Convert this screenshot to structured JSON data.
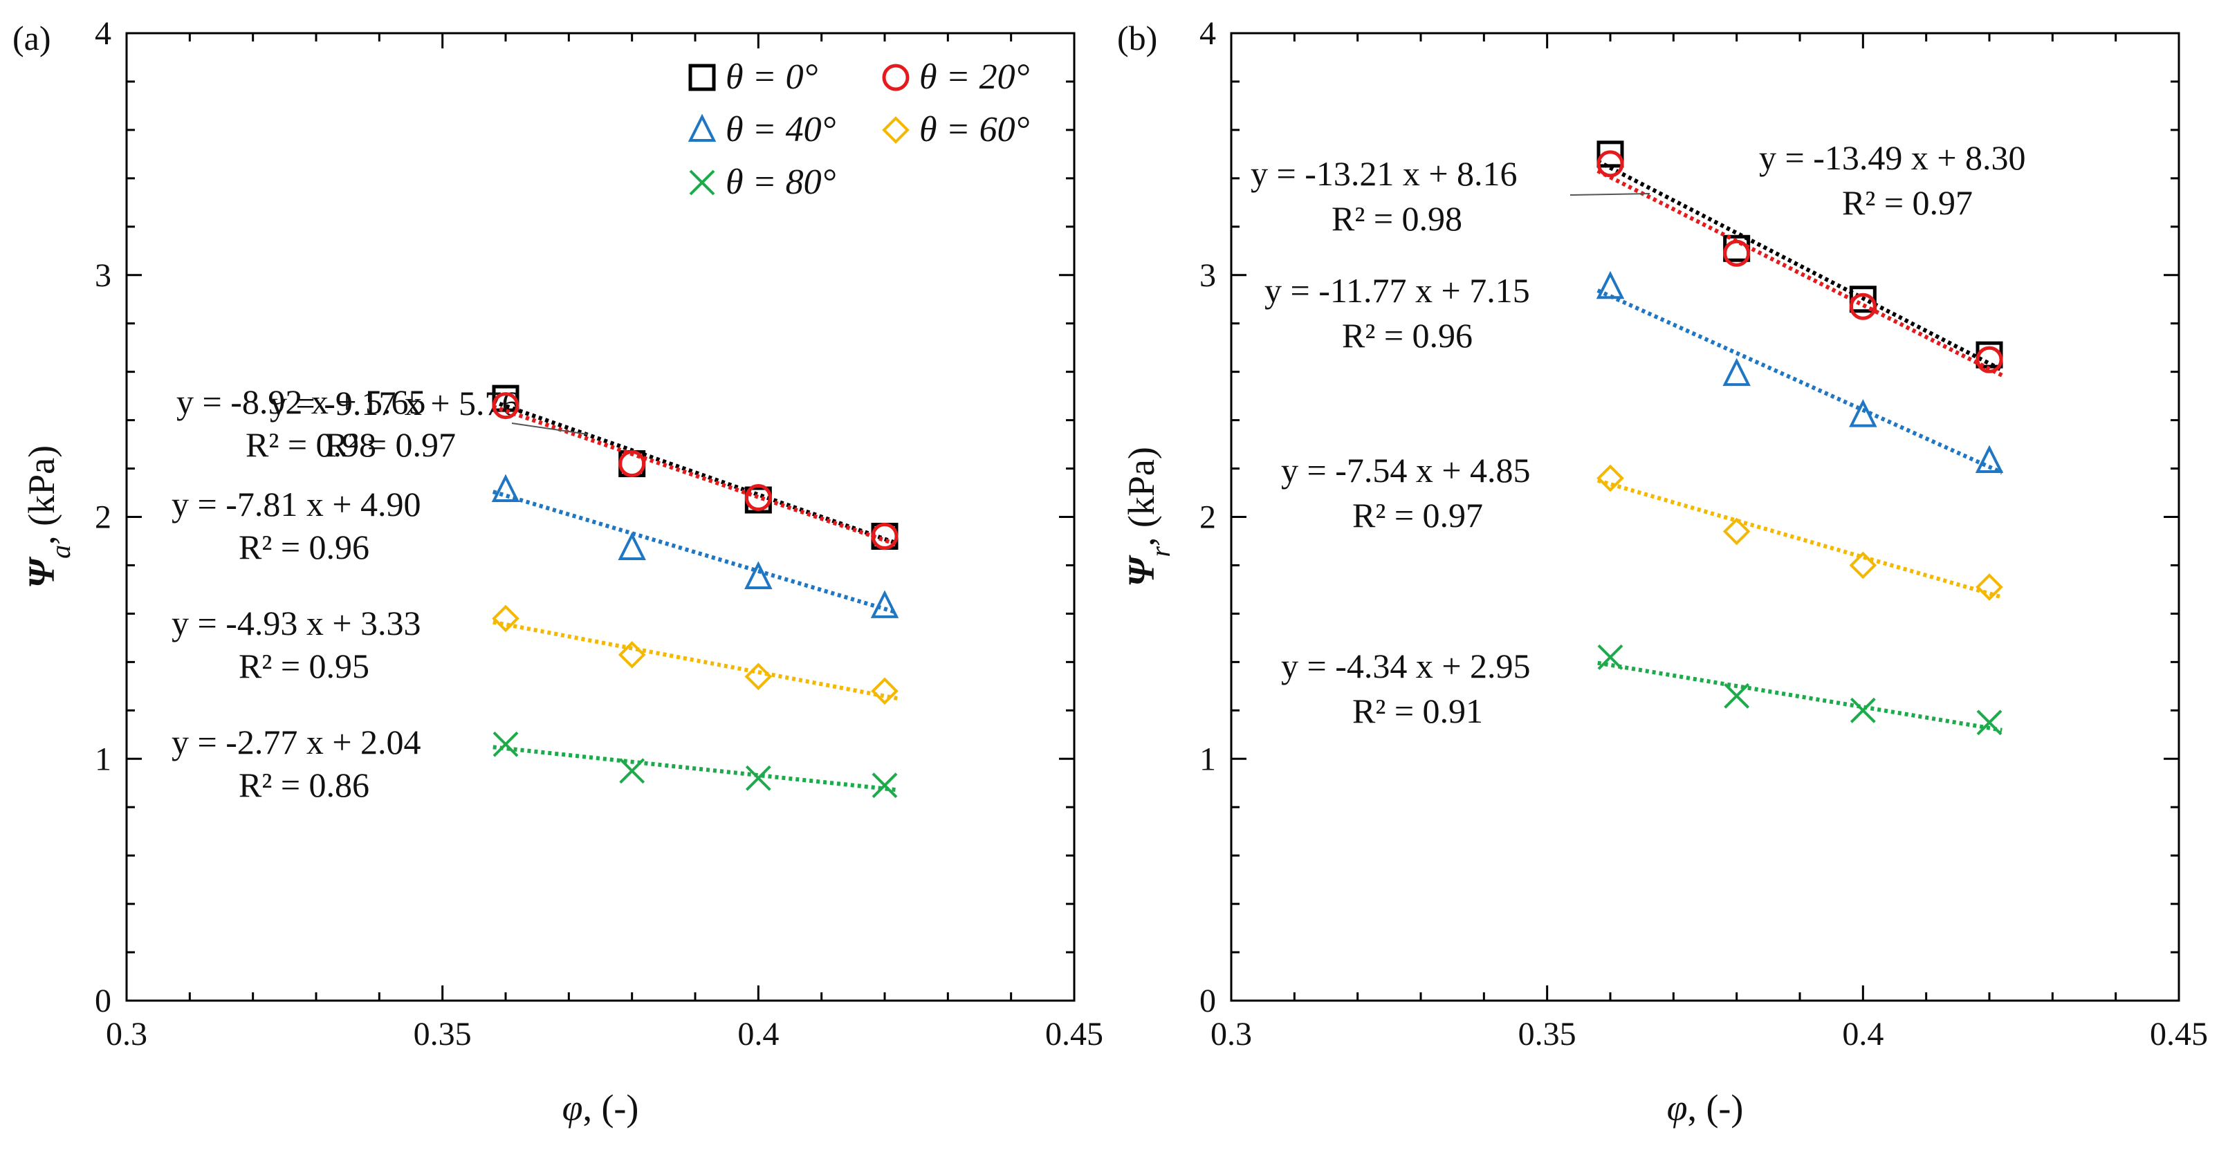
{
  "chart_data": [
    {
      "type": "scatter",
      "panel_label": "(a)",
      "xlabel": {
        "sym": "φ",
        "unit": ", (-)"
      },
      "ylabel": {
        "sym": "Ψ",
        "sub": "a",
        "unit": ", (kPa)"
      },
      "xlim": [
        0.3,
        0.45
      ],
      "ylim": [
        0,
        4
      ],
      "xticks": [
        "0.3",
        "0.35",
        "0.4",
        "0.45"
      ],
      "yticks": [
        "0",
        "1",
        "2",
        "3",
        "4"
      ],
      "legend": {
        "position": "top-right",
        "entries": [
          {
            "label": "θ = 0°",
            "marker": "square",
            "color": "#000000"
          },
          {
            "label": "θ = 20°",
            "marker": "circle",
            "color": "#e41a1c"
          },
          {
            "label": "θ = 40°",
            "marker": "triangle",
            "color": "#1f77c4"
          },
          {
            "label": "θ = 60°",
            "marker": "diamond",
            "color": "#f5b800"
          },
          {
            "label": "θ = 80°",
            "marker": "cross",
            "color": "#1daa4a"
          }
        ]
      },
      "series": [
        {
          "name": "θ = 0°",
          "marker": "square",
          "color": "#000000",
          "x": [
            0.36,
            0.38,
            0.4,
            0.42
          ],
          "y": [
            2.49,
            2.22,
            2.07,
            1.92
          ],
          "fit": {
            "slope": -9.17,
            "intercept": 5.76
          },
          "equation": "y = -9.17 x + 5.76",
          "r2": "R² = 0.97"
        },
        {
          "name": "θ = 20°",
          "marker": "circle",
          "color": "#e41a1c",
          "x": [
            0.36,
            0.38,
            0.4,
            0.42
          ],
          "y": [
            2.46,
            2.22,
            2.08,
            1.92
          ],
          "fit": {
            "slope": -8.92,
            "intercept": 5.65
          },
          "equation": "y = -8.92 x + 5.65",
          "r2": "R² = 0.98"
        },
        {
          "name": "θ = 40°",
          "marker": "triangle",
          "color": "#1f77c4",
          "x": [
            0.36,
            0.38,
            0.4,
            0.42
          ],
          "y": [
            2.11,
            1.87,
            1.75,
            1.63
          ],
          "fit": {
            "slope": -7.81,
            "intercept": 4.9
          },
          "equation": "y = -7.81 x + 4.90",
          "r2": "R² = 0.96"
        },
        {
          "name": "θ = 60°",
          "marker": "diamond",
          "color": "#f5b800",
          "x": [
            0.36,
            0.38,
            0.4,
            0.42
          ],
          "y": [
            1.58,
            1.43,
            1.34,
            1.28
          ],
          "fit": {
            "slope": -4.93,
            "intercept": 3.33
          },
          "equation": "y = -4.93 x + 3.33",
          "r2": "R² = 0.95"
        },
        {
          "name": "θ = 80°",
          "marker": "cross",
          "color": "#1daa4a",
          "x": [
            0.36,
            0.38,
            0.4,
            0.42
          ],
          "y": [
            1.06,
            0.95,
            0.92,
            0.89
          ],
          "fit": {
            "slope": -2.77,
            "intercept": 2.04
          },
          "equation": "y = -2.77 x + 2.04",
          "r2": "R² = 0.86"
        }
      ]
    },
    {
      "type": "scatter",
      "panel_label": "(b)",
      "xlabel": {
        "sym": "φ",
        "unit": ", (-)"
      },
      "ylabel": {
        "sym": "Ψ",
        "sub": "r",
        "unit": ", (kPa)"
      },
      "xlim": [
        0.3,
        0.45
      ],
      "ylim": [
        0,
        4
      ],
      "xticks": [
        "0.3",
        "0.35",
        "0.4",
        "0.45"
      ],
      "yticks": [
        "0",
        "1",
        "2",
        "3",
        "4"
      ],
      "series": [
        {
          "name": "θ = 0°",
          "marker": "square",
          "color": "#000000",
          "x": [
            0.36,
            0.38,
            0.4,
            0.42
          ],
          "y": [
            3.5,
            3.11,
            2.9,
            2.67
          ],
          "fit": {
            "slope": -13.49,
            "intercept": 8.3
          },
          "equation": "y = -13.49 x + 8.30",
          "r2": "R² = 0.97"
        },
        {
          "name": "θ = 20°",
          "marker": "circle",
          "color": "#e41a1c",
          "x": [
            0.36,
            0.38,
            0.4,
            0.42
          ],
          "y": [
            3.46,
            3.09,
            2.87,
            2.65
          ],
          "fit": {
            "slope": -13.21,
            "intercept": 8.16
          },
          "equation": "y = -13.21 x + 8.16",
          "r2": "R² = 0.98"
        },
        {
          "name": "θ = 40°",
          "marker": "triangle",
          "color": "#1f77c4",
          "x": [
            0.36,
            0.38,
            0.4,
            0.42
          ],
          "y": [
            2.95,
            2.59,
            2.42,
            2.23
          ],
          "fit": {
            "slope": -11.77,
            "intercept": 7.15
          },
          "equation": "y = -11.77 x + 7.15",
          "r2": "R² = 0.96"
        },
        {
          "name": "θ = 60°",
          "marker": "diamond",
          "color": "#f5b800",
          "x": [
            0.36,
            0.38,
            0.4,
            0.42
          ],
          "y": [
            2.16,
            1.94,
            1.8,
            1.71
          ],
          "fit": {
            "slope": -7.54,
            "intercept": 4.85
          },
          "equation": "y = -7.54 x + 4.85",
          "r2": "R² = 0.97"
        },
        {
          "name": "θ = 80°",
          "marker": "cross",
          "color": "#1daa4a",
          "x": [
            0.36,
            0.38,
            0.4,
            0.42
          ],
          "y": [
            1.42,
            1.26,
            1.2,
            1.15
          ],
          "fit": {
            "slope": -4.34,
            "intercept": 2.95
          },
          "equation": "y = -4.34 x + 2.95",
          "r2": "R² = 0.91"
        }
      ]
    }
  ]
}
